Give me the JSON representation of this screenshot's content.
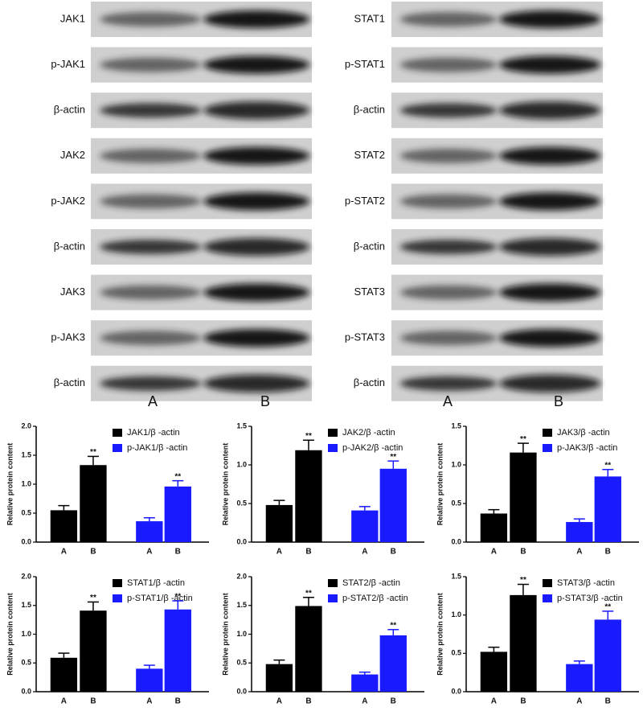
{
  "blots": {
    "left": {
      "rows": [
        "JAK1",
        "p-JAK1",
        "β-actin",
        "JAK2",
        "p-JAK2",
        "β-actin",
        "JAK3",
        "p-JAK3",
        "β-actin"
      ],
      "lanes": [
        "A",
        "B"
      ]
    },
    "right": {
      "rows": [
        "STAT1",
        "p-STAT1",
        "β-actin",
        "STAT2",
        "p-STAT2",
        "β-actin",
        "STAT3",
        "p-STAT3",
        "β-actin"
      ],
      "lanes": [
        "A",
        "B"
      ]
    }
  },
  "chart_data": [
    {
      "type": "bar",
      "ylabel": "Relative protein content",
      "categories": [
        "A",
        "B"
      ],
      "ylim": [
        0,
        2
      ],
      "yticks": [
        {
          "value": 0,
          "label": "0.0"
        },
        0.5,
        {
          "value": 1,
          "label": "1.0"
        },
        1.5,
        {
          "value": 2,
          "label": "2.0"
        }
      ],
      "series": [
        {
          "name": "JAK1/β -actin",
          "color": "#000000",
          "values": [
            0.55,
            1.33
          ],
          "errors": [
            0.08,
            0.15
          ],
          "significance": [
            null,
            "**"
          ]
        },
        {
          "name": "p-JAK1/β -actin",
          "color": "#1a1aff",
          "values": [
            0.36,
            0.96
          ],
          "errors": [
            0.06,
            0.1
          ],
          "significance": [
            null,
            "**"
          ]
        }
      ]
    },
    {
      "type": "bar",
      "ylabel": "Relative protein content",
      "categories": [
        "A",
        "B"
      ],
      "ylim": [
        0,
        1.5
      ],
      "yticks": [
        {
          "value": 0,
          "label": "0.0"
        },
        0.5,
        {
          "value": 1,
          "label": "1.0"
        },
        1.5
      ],
      "series": [
        {
          "name": "JAK2/β -actin",
          "color": "#000000",
          "values": [
            0.48,
            1.19
          ],
          "errors": [
            0.06,
            0.13
          ],
          "significance": [
            null,
            "**"
          ]
        },
        {
          "name": "p-JAK2/β -actin",
          "color": "#1a1aff",
          "values": [
            0.41,
            0.95
          ],
          "errors": [
            0.05,
            0.1
          ],
          "significance": [
            null,
            "**"
          ]
        }
      ]
    },
    {
      "type": "bar",
      "ylabel": "Relative protein content",
      "categories": [
        "A",
        "B"
      ],
      "ylim": [
        0,
        1.5
      ],
      "yticks": [
        {
          "value": 0,
          "label": "0.0"
        },
        0.5,
        {
          "value": 1,
          "label": "1.0"
        },
        1.5
      ],
      "series": [
        {
          "name": "JAK3/β -actin",
          "color": "#000000",
          "values": [
            0.37,
            1.16
          ],
          "errors": [
            0.05,
            0.12
          ],
          "significance": [
            null,
            "**"
          ]
        },
        {
          "name": "p-JAK3/β -actin",
          "color": "#1a1aff",
          "values": [
            0.26,
            0.85
          ],
          "errors": [
            0.04,
            0.09
          ],
          "significance": [
            null,
            "**"
          ]
        }
      ]
    },
    {
      "type": "bar",
      "ylabel": "Relative protein content",
      "categories": [
        "A",
        "B"
      ],
      "ylim": [
        0,
        2
      ],
      "yticks": [
        {
          "value": 0,
          "label": "0.0"
        },
        0.5,
        {
          "value": 1,
          "label": "1.0"
        },
        1.5,
        {
          "value": 2,
          "label": "2.0"
        }
      ],
      "series": [
        {
          "name": "STAT1/β -actin",
          "color": "#000000",
          "values": [
            0.59,
            1.41
          ],
          "errors": [
            0.08,
            0.15
          ],
          "significance": [
            null,
            "**"
          ]
        },
        {
          "name": "p-STAT1/β -actin",
          "color": "#1a1aff",
          "values": [
            0.4,
            1.43
          ],
          "errors": [
            0.06,
            0.15
          ],
          "significance": [
            null,
            "**"
          ]
        }
      ]
    },
    {
      "type": "bar",
      "ylabel": "Relative protein content",
      "categories": [
        "A",
        "B"
      ],
      "ylim": [
        0,
        2
      ],
      "yticks": [
        {
          "value": 0,
          "label": "0.0"
        },
        0.5,
        {
          "value": 1,
          "label": "1.0"
        },
        1.5,
        {
          "value": 2,
          "label": "2.0"
        }
      ],
      "series": [
        {
          "name": "STAT2/β -actin",
          "color": "#000000",
          "values": [
            0.48,
            1.49
          ],
          "errors": [
            0.07,
            0.15
          ],
          "significance": [
            null,
            "**"
          ]
        },
        {
          "name": "p-STAT2/β -actin",
          "color": "#1a1aff",
          "values": [
            0.3,
            0.98
          ],
          "errors": [
            0.04,
            0.1
          ],
          "significance": [
            null,
            "**"
          ]
        }
      ]
    },
    {
      "type": "bar",
      "ylabel": "Relative protein content",
      "categories": [
        "A",
        "B"
      ],
      "ylim": [
        0,
        1.5
      ],
      "yticks": [
        {
          "value": 0,
          "label": "0.0"
        },
        0.5,
        {
          "value": 1,
          "label": "1.0"
        },
        1.5
      ],
      "series": [
        {
          "name": "STAT3/β -actin",
          "color": "#000000",
          "values": [
            0.52,
            1.26
          ],
          "errors": [
            0.06,
            0.14
          ],
          "significance": [
            null,
            "**"
          ]
        },
        {
          "name": "p-STAT3/β -actin",
          "color": "#1a1aff",
          "values": [
            0.36,
            0.94
          ],
          "errors": [
            0.04,
            0.11
          ],
          "significance": [
            null,
            "**"
          ]
        }
      ]
    }
  ]
}
